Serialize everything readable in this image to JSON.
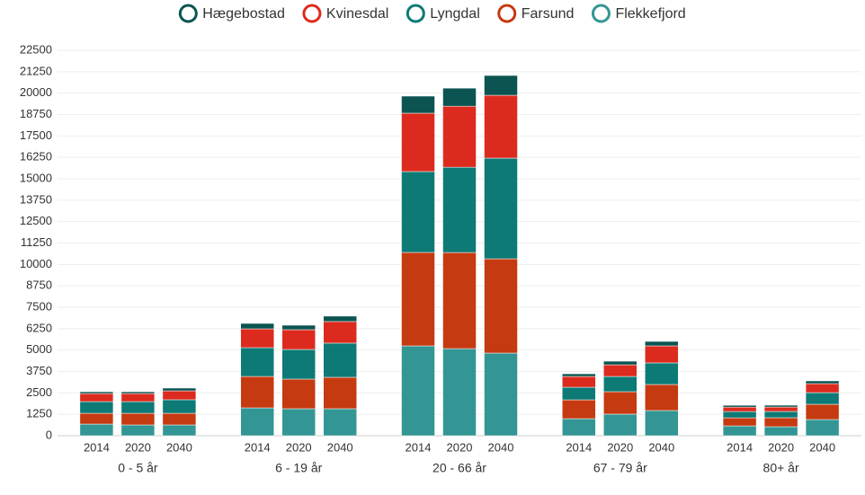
{
  "chart_data": {
    "type": "stacked-grouped-bar",
    "groups": [
      "0 - 5 år",
      "6 - 19 år",
      "20 - 66 år",
      "67 - 79 år",
      "80+ år"
    ],
    "categories": [
      "2014",
      "2020",
      "2040"
    ],
    "series": [
      {
        "name": "Flekkefjord",
        "color": "#339694",
        "values": [
          [
            680,
            630,
            630
          ],
          [
            1625,
            1575,
            1575
          ],
          [
            5245,
            5085,
            4825
          ],
          [
            995,
            1260,
            1470
          ],
          [
            575,
            525,
            945
          ]
        ]
      },
      {
        "name": "Farsund",
        "color": "#c53a10",
        "values": [
          [
            630,
            680,
            680
          ],
          [
            1835,
            1730,
            1835
          ],
          [
            5455,
            5610,
            5505
          ],
          [
            1100,
            1310,
            1520
          ],
          [
            470,
            525,
            890
          ]
        ]
      },
      {
        "name": "Lyngdal",
        "color": "#0d7a76",
        "values": [
          [
            680,
            680,
            790
          ],
          [
            1680,
            1730,
            1995
          ],
          [
            4720,
            4980,
            5875
          ],
          [
            735,
            890,
            1260
          ],
          [
            365,
            365,
            680
          ]
        ]
      },
      {
        "name": "Kvinesdal",
        "color": "#dc2b1e",
        "values": [
          [
            470,
            470,
            520
          ],
          [
            1100,
            1155,
            1260
          ],
          [
            3410,
            3565,
            3670
          ],
          [
            630,
            680,
            995
          ],
          [
            260,
            260,
            525
          ]
        ]
      },
      {
        "name": "Hægebostad",
        "color": "#0b5451",
        "values": [
          [
            105,
            105,
            160
          ],
          [
            315,
            260,
            315
          ],
          [
            995,
            1050,
            1155
          ],
          [
            155,
            210,
            260
          ],
          [
            105,
            105,
            160
          ]
        ]
      }
    ],
    "legend_order": [
      4,
      3,
      2,
      1,
      0
    ],
    "ylim": [
      0,
      22500
    ],
    "yticks": [
      0,
      1250,
      2500,
      3750,
      5000,
      6250,
      7500,
      8750,
      10000,
      11250,
      12500,
      13750,
      15000,
      16250,
      17500,
      18750,
      20000,
      21250,
      22500
    ],
    "grid": true
  }
}
